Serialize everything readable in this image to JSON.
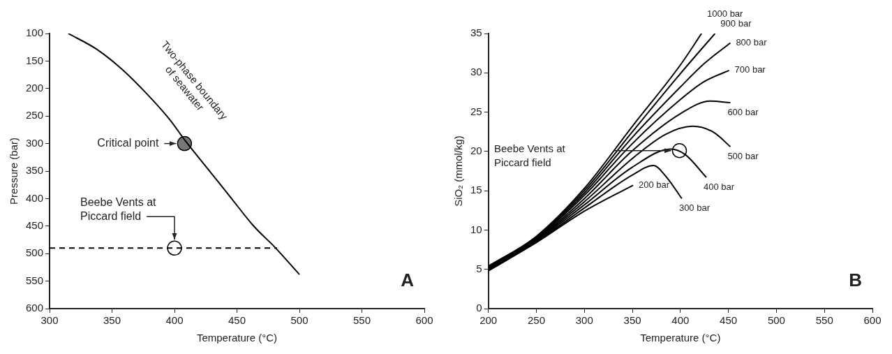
{
  "chart_data": [
    {
      "type": "line",
      "xlabel": "Temperature (°C)",
      "ylabel": "Pressure (bar)",
      "xlim": [
        300,
        600
      ],
      "xticks": [
        300,
        350,
        400,
        450,
        500,
        550,
        600
      ],
      "ylim": [
        600,
        100
      ],
      "yticks": [
        100,
        150,
        200,
        250,
        300,
        350,
        400,
        450,
        500,
        550,
        600
      ],
      "grid": false,
      "legend": false,
      "marker": "none",
      "series": [
        {
          "name": "Two-phase boundary of seawater",
          "color": "#000000",
          "x": [
            315,
            338,
            358,
            378,
            396,
            409,
            427,
            445,
            463,
            481,
            500
          ],
          "values": [
            100,
            129,
            165,
            210,
            256,
            296,
            347,
            398,
            449,
            490,
            538
          ]
        },
        {
          "type": "line",
          "line_style": "dashed",
          "color": "#000000",
          "x": [
            300,
            482
          ],
          "values": [
            490,
            490
          ]
        },
        {
          "type": "scatter",
          "marker": "circle",
          "color": "#777777",
          "x": [
            408
          ],
          "values": [
            300
          ]
        },
        {
          "type": "scatter",
          "marker": "circle",
          "color": "#ffffff",
          "x": [
            400
          ],
          "values": [
            490
          ]
        }
      ],
      "annotations": [
        {
          "text": "Critical point",
          "x": 408,
          "y": 300
        },
        {
          "text": "Beebe Vents at Piccard field",
          "x": 400,
          "y": 490
        },
        "A"
      ]
    },
    {
      "type": "line",
      "xlabel": "Temperature (°C)",
      "ylabel": "SiO₂ (mmol/kg)",
      "xlim": [
        200,
        600
      ],
      "xticks": [
        200,
        250,
        300,
        350,
        400,
        450,
        500,
        550,
        600
      ],
      "ylim": [
        0,
        35
      ],
      "yticks": [
        0,
        5,
        10,
        15,
        20,
        25,
        30,
        35
      ],
      "grid": false,
      "legend": false,
      "marker": "none",
      "series": [
        {
          "name": "200 bar",
          "color": "#000000",
          "x": [
            200,
            250,
            300,
            350.7
          ],
          "values": [
            4.8,
            8.4,
            12.4,
            15.7
          ]
        },
        {
          "name": "300 bar",
          "color": "#000000",
          "x": [
            200,
            250,
            300,
            350,
            372,
            385,
            401.5
          ],
          "values": [
            4.9,
            8.5,
            12.8,
            17.0,
            18.2,
            16.8,
            14.0
          ]
        },
        {
          "name": "400 bar",
          "color": "#000000",
          "x": [
            200,
            250,
            300,
            350,
            390,
            405,
            427
          ],
          "values": [
            5.0,
            8.6,
            13.2,
            18.0,
            20.3,
            19.6,
            16.7
          ]
        },
        {
          "name": "500 bar",
          "color": "#000000",
          "x": [
            200,
            250,
            300,
            350,
            385,
            413,
            435,
            452
          ],
          "values": [
            5.0,
            8.7,
            13.6,
            19.1,
            22.2,
            23.2,
            22.4,
            20.6
          ]
        },
        {
          "name": "600 bar",
          "color": "#000000",
          "x": [
            200,
            250,
            300,
            350,
            400,
            431,
            452
          ],
          "values": [
            5.1,
            8.8,
            14.0,
            20.1,
            24.8,
            26.4,
            26.2
          ]
        },
        {
          "name": "700 bar",
          "color": "#000000",
          "x": [
            200,
            250,
            300,
            350,
            400,
            425,
            450.7
          ],
          "values": [
            5.2,
            8.9,
            14.4,
            21.0,
            26.6,
            28.9,
            30.3
          ]
        },
        {
          "name": "800 bar",
          "color": "#000000",
          "x": [
            200,
            250,
            300,
            350,
            400,
            425,
            452
          ],
          "values": [
            5.2,
            9.0,
            14.7,
            21.8,
            28.2,
            31.2,
            33.8
          ]
        },
        {
          "name": "900 bar",
          "color": "#000000",
          "x": [
            200,
            250,
            300,
            350,
            400,
            436
          ],
          "values": [
            5.3,
            9.1,
            15.0,
            22.5,
            29.9,
            35.0
          ]
        },
        {
          "name": "1000 bar",
          "color": "#000000",
          "x": [
            200,
            250,
            300,
            350,
            400,
            422
          ],
          "values": [
            5.4,
            9.2,
            15.3,
            23.2,
            31.0,
            35.0
          ]
        },
        {
          "type": "scatter",
          "marker": "circle",
          "color": "#ffffff",
          "x": [
            399
          ],
          "values": [
            20.1
          ]
        }
      ],
      "annotations": [
        "Beebe Vents at Piccard field",
        "B"
      ]
    }
  ]
}
